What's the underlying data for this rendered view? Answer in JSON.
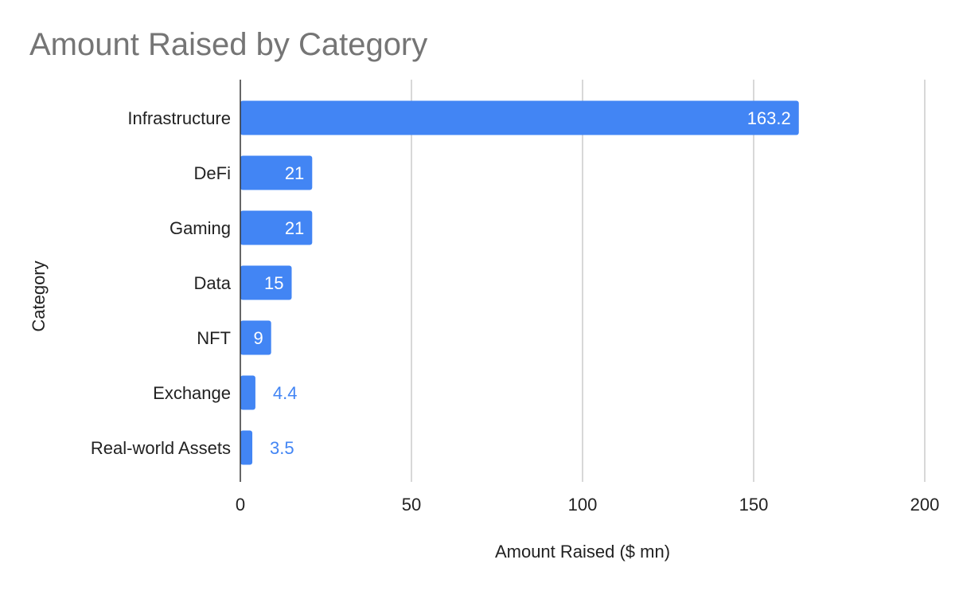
{
  "chart_data": {
    "type": "bar",
    "orientation": "horizontal",
    "title": "Amount Raised by Category",
    "xlabel": "Amount Raised ($ mn)",
    "ylabel": "Category",
    "categories": [
      "Infrastructure",
      "DeFi",
      "Gaming",
      "Data",
      "NFT",
      "Exchange",
      "Real-world Assets"
    ],
    "values": [
      163.2,
      21,
      21,
      15,
      9,
      4.4,
      3.5
    ],
    "data_labels": [
      "163.2",
      "21",
      "21",
      "15",
      "9",
      "4.4",
      "3.5"
    ],
    "xlim": [
      0,
      200
    ],
    "xticks": [
      0,
      50,
      100,
      150,
      200
    ],
    "xtick_labels": [
      "0",
      "50",
      "100",
      "150",
      "200"
    ],
    "grid": "vertical",
    "legend": "none",
    "colors": {
      "bar": "#4285f4",
      "label_inside": "#ffffff",
      "label_outside": "#4285f4",
      "grid": "#cccccc",
      "axis": "#333333"
    }
  }
}
